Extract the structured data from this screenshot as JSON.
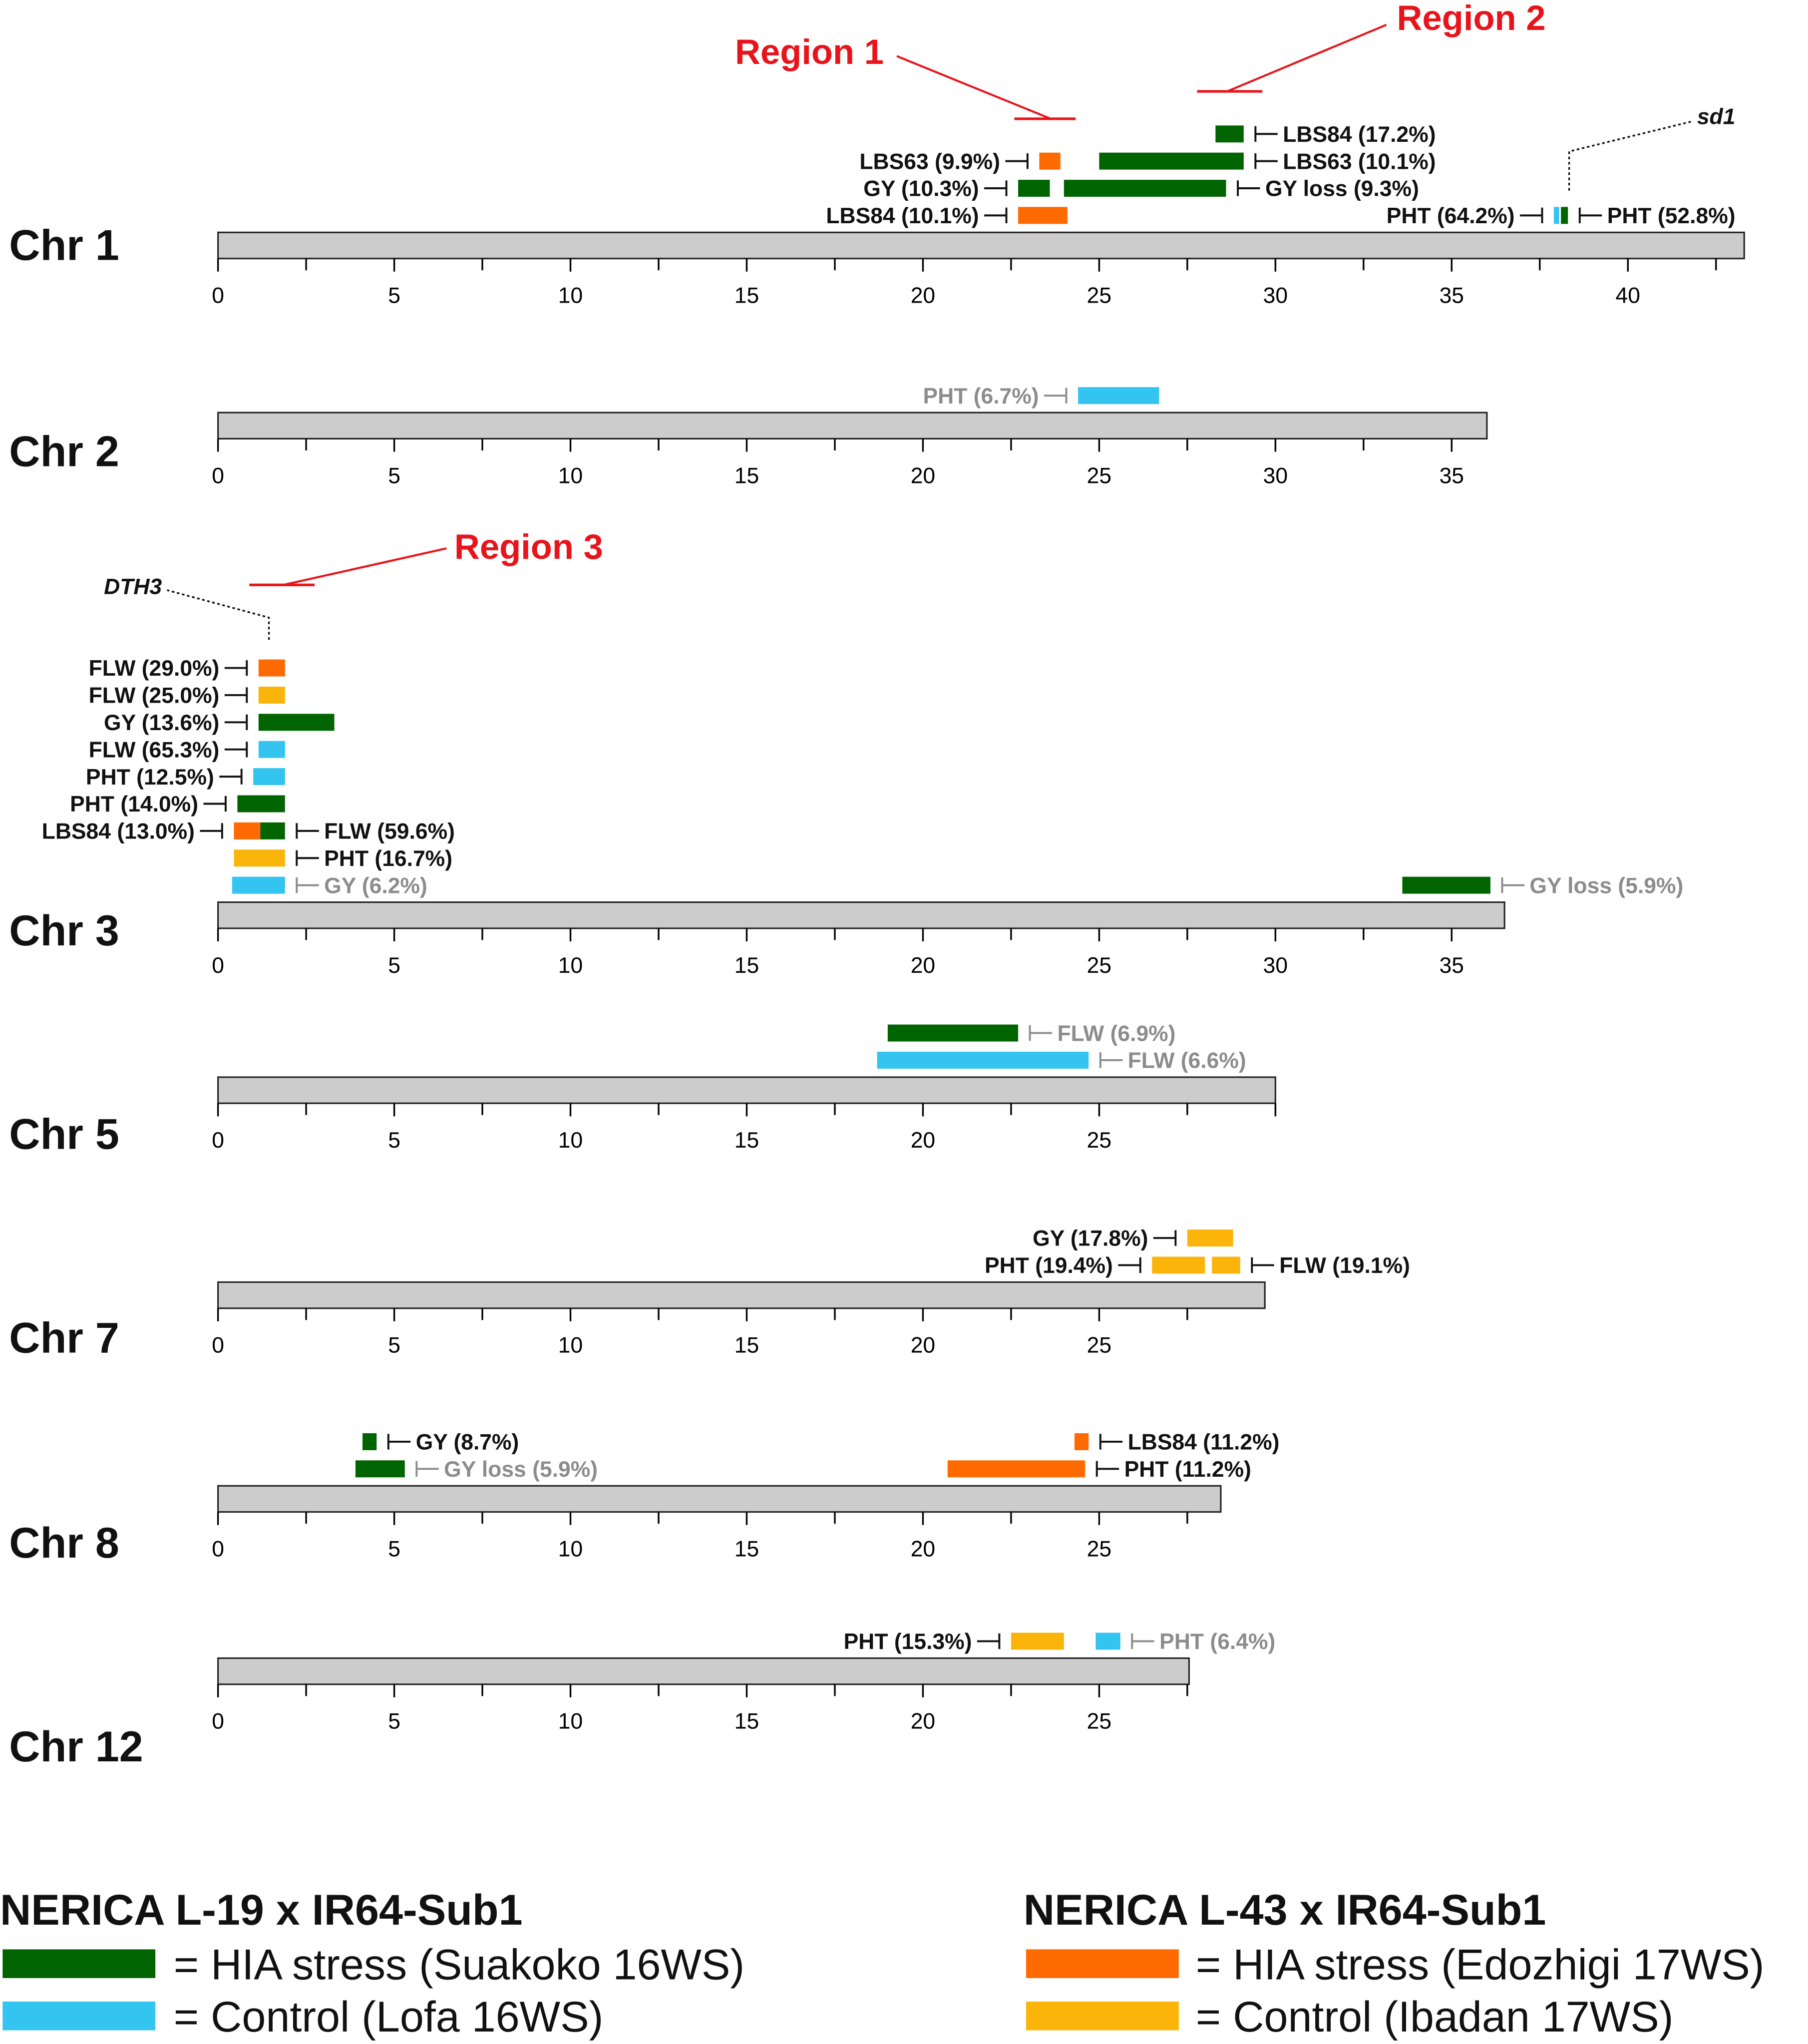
{
  "axis": {
    "max_mb": 45,
    "tick_step": 5,
    "label_step": 5
  },
  "colors": {
    "suakoko": "#006400",
    "lofa": "#33c4f0",
    "edozhigi": "#ff6a00",
    "ibadan": "#fbb40a",
    "chromosome": "#cccccc",
    "label_dark": "#111111",
    "label_grey": "#8c8c8c",
    "region": "#e8141b"
  },
  "chromosomes": [
    {
      "id": "chr1",
      "label": "Chr 1",
      "length": 43.3,
      "ticks": [
        "0",
        "5",
        "10",
        "15",
        "20",
        "25",
        "30",
        "35",
        "40"
      ],
      "qtls": [
        {
          "start": 28.3,
          "end": 29.1,
          "color": "suakoko",
          "label": "LBS84 (17.2%)",
          "side": "right",
          "grey": false,
          "row": 4
        },
        {
          "start": 23.3,
          "end": 23.9,
          "color": "edozhigi",
          "label": "LBS63 (9.9%)",
          "side": "left",
          "grey": false,
          "row": 3
        },
        {
          "start": 25.0,
          "end": 29.1,
          "color": "suakoko",
          "label": "LBS63 (10.1%)",
          "side": "right",
          "grey": false,
          "row": 3
        },
        {
          "start": 22.7,
          "end": 23.6,
          "color": "suakoko",
          "label": "GY (10.3%)",
          "side": "left",
          "grey": false,
          "row": 2
        },
        {
          "start": 24.0,
          "end": 28.6,
          "color": "suakoko",
          "label": "GY loss (9.3%)",
          "side": "right",
          "grey": false,
          "row": 2
        },
        {
          "start": 22.7,
          "end": 24.1,
          "color": "edozhigi",
          "label": "LBS84 (10.1%)",
          "side": "left",
          "grey": false,
          "row": 1
        },
        {
          "start": 37.9,
          "end": 38.05,
          "color": "lofa",
          "label": "PHT (64.2%)",
          "side": "left",
          "grey": false,
          "row": 1
        },
        {
          "start": 38.1,
          "end": 38.3,
          "color": "suakoko",
          "label": "PHT (52.8%)",
          "side": "right",
          "grey": false,
          "row": 1
        }
      ]
    },
    {
      "id": "chr2",
      "label": "Chr 2",
      "length": 36.0,
      "ticks": [
        "0",
        "5",
        "10",
        "15",
        "20",
        "25",
        "30",
        "35"
      ],
      "qtls": [
        {
          "start": 24.4,
          "end": 26.7,
          "color": "lofa",
          "label": "PHT (6.7%)",
          "side": "left",
          "grey": true,
          "row": 1
        }
      ]
    },
    {
      "id": "chr3",
      "label": "Chr 3",
      "length": 36.5,
      "ticks": [
        "0",
        "5",
        "10",
        "15",
        "20",
        "25",
        "30",
        "35"
      ],
      "qtls": [
        {
          "start": 1.15,
          "end": 1.9,
          "color": "edozhigi",
          "label": "FLW (29.0%)",
          "side": "left",
          "grey": false,
          "row": 9
        },
        {
          "start": 1.15,
          "end": 1.9,
          "color": "ibadan",
          "label": "FLW (25.0%)",
          "side": "left",
          "grey": false,
          "row": 8
        },
        {
          "start": 1.15,
          "end": 3.3,
          "color": "suakoko",
          "label": "GY (13.6%)",
          "side": "left",
          "grey": false,
          "row": 7
        },
        {
          "start": 1.15,
          "end": 1.9,
          "color": "lofa",
          "label": "FLW (65.3%)",
          "side": "left",
          "grey": false,
          "row": 6
        },
        {
          "start": 1.0,
          "end": 1.9,
          "color": "lofa",
          "label": "PHT (12.5%)",
          "side": "left",
          "grey": false,
          "row": 5
        },
        {
          "start": 0.55,
          "end": 1.9,
          "color": "suakoko",
          "label": "PHT (14.0%)",
          "side": "left",
          "grey": false,
          "row": 4
        },
        {
          "start": 0.45,
          "end": 1.2,
          "color": "edozhigi",
          "label": "LBS84 (13.0%)",
          "side": "left",
          "grey": false,
          "row": 3
        },
        {
          "start": 1.2,
          "end": 1.9,
          "color": "suakoko",
          "label": "FLW (59.6%)",
          "side": "right",
          "grey": false,
          "row": 3
        },
        {
          "start": 0.45,
          "end": 1.9,
          "color": "ibadan",
          "label": "PHT (16.7%)",
          "side": "right",
          "grey": false,
          "row": 2
        },
        {
          "start": 0.4,
          "end": 1.9,
          "color": "lofa",
          "label": "GY (6.2%)",
          "side": "right",
          "grey": true,
          "row": 1
        },
        {
          "start": 33.6,
          "end": 36.1,
          "color": "suakoko",
          "label": "GY loss (5.9%)",
          "side": "right",
          "grey": true,
          "row": 1
        }
      ]
    },
    {
      "id": "chr5",
      "label": "Chr 5",
      "length": 30.0,
      "ticks": [
        "0",
        "5",
        "10",
        "15",
        "20",
        "25"
      ],
      "qtls": [
        {
          "start": 19.0,
          "end": 22.7,
          "color": "suakoko",
          "label": "FLW (6.9%)",
          "side": "right",
          "grey": true,
          "row": 2
        },
        {
          "start": 18.7,
          "end": 24.7,
          "color": "lofa",
          "label": "FLW (6.6%)",
          "side": "right",
          "grey": true,
          "row": 1
        }
      ]
    },
    {
      "id": "chr7",
      "label": "Chr 7",
      "length": 29.7,
      "ticks": [
        "0",
        "5",
        "10",
        "15",
        "20",
        "25"
      ],
      "qtls": [
        {
          "start": 27.5,
          "end": 28.8,
          "color": "ibadan",
          "label": "GY (17.8%)",
          "side": "left",
          "grey": false,
          "row": 2
        },
        {
          "start": 26.5,
          "end": 28.0,
          "color": "ibadan",
          "label": "PHT (19.4%)",
          "side": "left",
          "grey": false,
          "row": 1
        },
        {
          "start": 28.2,
          "end": 29.0,
          "color": "ibadan",
          "label": "FLW (19.1%)",
          "side": "right",
          "grey": false,
          "row": 1
        }
      ]
    },
    {
      "id": "chr8",
      "label": "Chr 8",
      "length": 28.45,
      "ticks": [
        "0",
        "5",
        "10",
        "15",
        "20",
        "25"
      ],
      "qtls": [
        {
          "start": 4.1,
          "end": 4.5,
          "color": "suakoko",
          "label": "GY (8.7%)",
          "side": "right",
          "grey": false,
          "row": 2
        },
        {
          "start": 24.3,
          "end": 24.7,
          "color": "edozhigi",
          "label": "LBS84 (11.2%)",
          "side": "right",
          "grey": false,
          "row": 2
        },
        {
          "start": 3.9,
          "end": 5.3,
          "color": "suakoko",
          "label": "GY loss (5.9%)",
          "side": "right",
          "grey": true,
          "row": 1
        },
        {
          "start": 20.7,
          "end": 24.6,
          "color": "edozhigi",
          "label": "PHT (11.2%)",
          "side": "right",
          "grey": false,
          "row": 1
        }
      ]
    },
    {
      "id": "chr12",
      "label": "Chr 12",
      "length": 27.55,
      "ticks": [
        "0",
        "5",
        "10",
        "15",
        "20",
        "25"
      ],
      "qtls": [
        {
          "start": 22.5,
          "end": 24.0,
          "color": "ibadan",
          "label": "PHT (15.3%)",
          "side": "left",
          "grey": false,
          "row": 1
        },
        {
          "start": 24.9,
          "end": 25.6,
          "color": "lofa",
          "label": "PHT (6.4%)",
          "side": "right",
          "grey": true,
          "row": 1
        }
      ]
    }
  ],
  "regions": [
    {
      "label": "Region 1"
    },
    {
      "label": "Region 2"
    },
    {
      "label": "Region 3"
    }
  ],
  "genes": [
    {
      "label": "sd1",
      "chromosome": "chr1",
      "position": 38.1
    },
    {
      "label": "DTH3",
      "chromosome": "chr3",
      "position": 1.45
    }
  ],
  "legend": {
    "groups": [
      {
        "title": "NERICA L-19 x IR64-Sub1",
        "items": [
          {
            "color": "suakoko",
            "label": "= HIA stress (Suakoko 16WS)"
          },
          {
            "color": "lofa",
            "label": "= Control (Lofa 16WS)"
          }
        ]
      },
      {
        "title": "NERICA L-43 x IR64-Sub1",
        "items": [
          {
            "color": "edozhigi",
            "label": "= HIA stress (Edozhigi 17WS)"
          },
          {
            "color": "ibadan",
            "label": "= Control (Ibadan 17WS)"
          }
        ]
      }
    ]
  }
}
